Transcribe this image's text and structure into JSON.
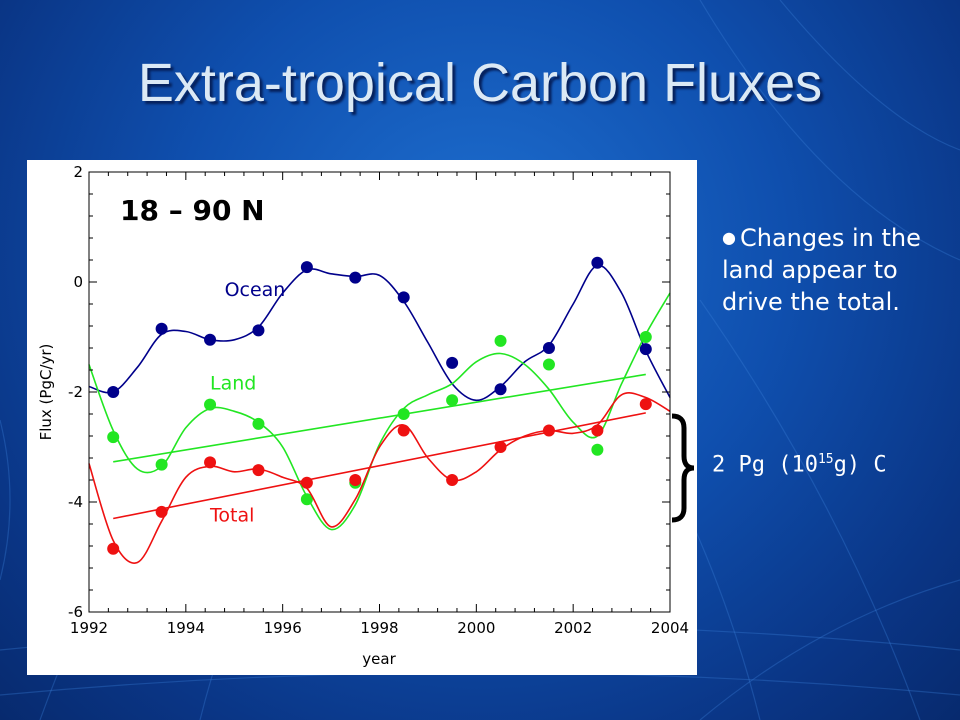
{
  "slide": {
    "title": "Extra-tropical Carbon Fluxes",
    "bullet": "Changes in the land appear to drive the total.",
    "bracket_label": {
      "prefix": "2 Pg (10",
      "sup": "15",
      "suffix": "g) C"
    },
    "colors": {
      "background": "#0f4fae",
      "title": "#dbe9f5",
      "text": "#ffffff"
    }
  },
  "chart_data": {
    "type": "scatter",
    "title": "18 – 90 N",
    "xlabel": "year",
    "ylabel": "Flux (PgC/yr)",
    "xlim": [
      1992,
      2004
    ],
    "ylim": [
      -6,
      2
    ],
    "xticks": [
      1992,
      1994,
      1996,
      1998,
      2000,
      2002,
      2004
    ],
    "yticks": [
      -6,
      -4,
      -2,
      0,
      2
    ],
    "grid": false,
    "series": [
      {
        "name": "Ocean",
        "color": "#00008b",
        "points": [
          [
            1992.5,
            -2.0
          ],
          [
            1993.5,
            -0.85
          ],
          [
            1994.5,
            -1.05
          ],
          [
            1995.5,
            -0.88
          ],
          [
            1996.5,
            0.27
          ],
          [
            1997.5,
            0.08
          ],
          [
            1998.5,
            -0.28
          ],
          [
            1999.5,
            -1.47
          ],
          [
            2000.5,
            -1.95
          ],
          [
            2001.5,
            -1.2
          ],
          [
            2002.5,
            0.35
          ],
          [
            2003.5,
            -1.22
          ]
        ],
        "smooth": [
          [
            1992.0,
            -1.9
          ],
          [
            1992.5,
            -2.0
          ],
          [
            1993.0,
            -1.55
          ],
          [
            1993.5,
            -0.95
          ],
          [
            1994.0,
            -0.9
          ],
          [
            1994.5,
            -1.05
          ],
          [
            1995.0,
            -1.05
          ],
          [
            1995.5,
            -0.82
          ],
          [
            1996.0,
            -0.2
          ],
          [
            1996.5,
            0.22
          ],
          [
            1997.0,
            0.15
          ],
          [
            1997.5,
            0.1
          ],
          [
            1998.0,
            0.12
          ],
          [
            1998.5,
            -0.35
          ],
          [
            1999.0,
            -1.1
          ],
          [
            1999.5,
            -1.85
          ],
          [
            2000.0,
            -2.15
          ],
          [
            2000.5,
            -1.9
          ],
          [
            2001.0,
            -1.45
          ],
          [
            2001.5,
            -1.15
          ],
          [
            2002.0,
            -0.4
          ],
          [
            2002.5,
            0.3
          ],
          [
            2003.0,
            -0.2
          ],
          [
            2003.5,
            -1.25
          ],
          [
            2004.0,
            -2.1
          ]
        ],
        "trend": null,
        "label_pos": [
          1994.8,
          -0.25
        ]
      },
      {
        "name": "Land",
        "color": "#22e622",
        "points": [
          [
            1992.5,
            -2.82
          ],
          [
            1993.5,
            -3.32
          ],
          [
            1994.5,
            -2.23
          ],
          [
            1995.5,
            -2.58
          ],
          [
            1996.5,
            -3.95
          ],
          [
            1997.5,
            -3.65
          ],
          [
            1998.5,
            -2.4
          ],
          [
            1999.5,
            -2.15
          ],
          [
            2000.5,
            -1.07
          ],
          [
            2001.5,
            -1.5
          ],
          [
            2002.5,
            -3.05
          ],
          [
            2003.5,
            -1.0
          ]
        ],
        "smooth": [
          [
            1992.0,
            -1.5
          ],
          [
            1992.5,
            -2.7
          ],
          [
            1993.0,
            -3.4
          ],
          [
            1993.5,
            -3.35
          ],
          [
            1994.0,
            -2.65
          ],
          [
            1994.5,
            -2.3
          ],
          [
            1995.0,
            -2.35
          ],
          [
            1995.5,
            -2.55
          ],
          [
            1996.0,
            -3.0
          ],
          [
            1996.5,
            -3.9
          ],
          [
            1997.0,
            -4.5
          ],
          [
            1997.5,
            -4.05
          ],
          [
            1998.0,
            -2.95
          ],
          [
            1998.5,
            -2.3
          ],
          [
            1999.0,
            -2.05
          ],
          [
            1999.5,
            -1.85
          ],
          [
            2000.0,
            -1.45
          ],
          [
            2000.5,
            -1.3
          ],
          [
            2001.0,
            -1.5
          ],
          [
            2001.5,
            -1.95
          ],
          [
            2002.0,
            -2.55
          ],
          [
            2002.5,
            -2.8
          ],
          [
            2003.0,
            -1.85
          ],
          [
            2003.5,
            -0.95
          ],
          [
            2004.0,
            -0.2
          ]
        ],
        "trend": [
          [
            1992.5,
            -3.27
          ],
          [
            2003.5,
            -1.68
          ]
        ],
        "label_pos": [
          1994.5,
          -1.95
        ]
      },
      {
        "name": "Total",
        "color": "#ee1111",
        "points": [
          [
            1992.5,
            -4.85
          ],
          [
            1993.5,
            -4.18
          ],
          [
            1994.5,
            -3.28
          ],
          [
            1995.5,
            -3.42
          ],
          [
            1996.5,
            -3.65
          ],
          [
            1997.5,
            -3.6
          ],
          [
            1998.5,
            -2.7
          ],
          [
            1999.5,
            -3.6
          ],
          [
            2000.5,
            -3.0
          ],
          [
            2001.5,
            -2.7
          ],
          [
            2002.5,
            -2.7
          ],
          [
            2003.5,
            -2.22
          ]
        ],
        "smooth": [
          [
            1992.0,
            -3.3
          ],
          [
            1992.5,
            -4.7
          ],
          [
            1993.0,
            -5.1
          ],
          [
            1993.5,
            -4.35
          ],
          [
            1994.0,
            -3.55
          ],
          [
            1994.5,
            -3.35
          ],
          [
            1995.0,
            -3.45
          ],
          [
            1995.5,
            -3.4
          ],
          [
            1996.0,
            -3.55
          ],
          [
            1996.5,
            -3.75
          ],
          [
            1997.0,
            -4.45
          ],
          [
            1997.5,
            -3.95
          ],
          [
            1998.0,
            -3.0
          ],
          [
            1998.5,
            -2.6
          ],
          [
            1999.0,
            -3.2
          ],
          [
            1999.5,
            -3.6
          ],
          [
            2000.0,
            -3.45
          ],
          [
            2000.5,
            -3.05
          ],
          [
            2001.0,
            -2.8
          ],
          [
            2001.5,
            -2.7
          ],
          [
            2002.0,
            -2.75
          ],
          [
            2002.5,
            -2.6
          ],
          [
            2003.0,
            -2.05
          ],
          [
            2003.5,
            -2.1
          ],
          [
            2004.0,
            -2.35
          ]
        ],
        "trend": [
          [
            1992.5,
            -4.3
          ],
          [
            2003.5,
            -2.38
          ]
        ],
        "label_pos": [
          1994.5,
          -4.35
        ]
      }
    ]
  }
}
